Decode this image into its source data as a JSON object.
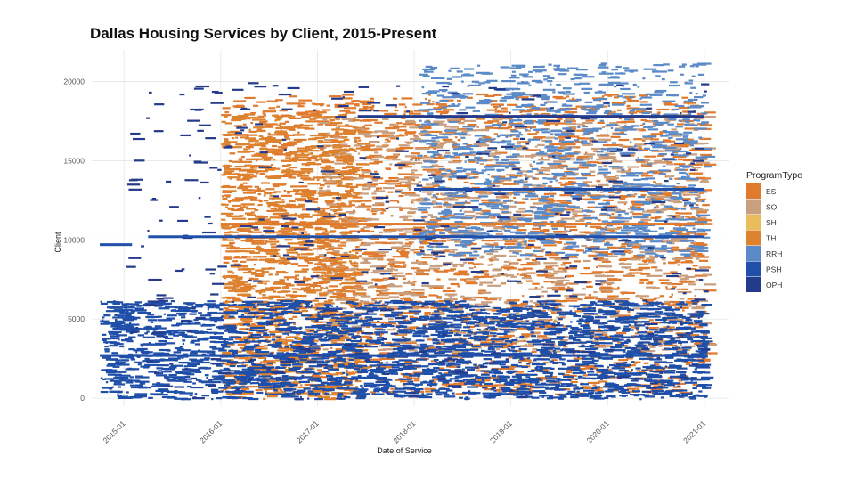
{
  "chart_data": {
    "type": "scatter",
    "title": "Dallas Housing Services by Client, 2015-Present",
    "xlabel": "Date of Service",
    "ylabel": "Client",
    "x_ticks": [
      "2015-01",
      "2016-01",
      "2017-01",
      "2018-01",
      "2019-01",
      "2020-01",
      "2021-01"
    ],
    "y_ticks": [
      0,
      5000,
      10000,
      15000,
      20000
    ],
    "xlim": [
      "2014-09",
      "2021-04"
    ],
    "ylim": [
      -500,
      22000
    ],
    "grid": true,
    "legend": {
      "title": "ProgramType",
      "placement": "right",
      "items": [
        {
          "label": "ES",
          "color": "#E07A2E"
        },
        {
          "label": "SO",
          "color": "#C9A07F"
        },
        {
          "label": "SH",
          "color": "#E9BD5C"
        },
        {
          "label": "TH",
          "color": "#DD822F"
        },
        {
          "label": "RRH",
          "color": "#5A8AC8"
        },
        {
          "label": "PSH",
          "color": "#1F4FA8"
        },
        {
          "label": "OPH",
          "color": "#243A8A"
        }
      ]
    },
    "regions": [
      {
        "program": "ES",
        "x": [
          "2016-01",
          "2021-01"
        ],
        "y": [
          300,
          19300
        ],
        "density": "high"
      },
      {
        "program": "SO",
        "x": [
          "2017-01",
          "2021-01"
        ],
        "y": [
          3000,
          18000
        ],
        "density": "medium"
      },
      {
        "program": "TH",
        "x": [
          "2016-01",
          "2017-06"
        ],
        "y": [
          0,
          18000
        ],
        "density": "medium"
      },
      {
        "program": "RRH",
        "x": [
          "2018-01",
          "2021-01"
        ],
        "y": [
          9000,
          21200
        ],
        "density": "medium"
      },
      {
        "program": "PSH",
        "x": [
          "2014-10",
          "2021-01"
        ],
        "y": [
          0,
          6200
        ],
        "density": "high"
      },
      {
        "program": "OPH",
        "x": [
          "2015-01",
          "2021-01"
        ],
        "y": [
          0,
          20000
        ],
        "density": "low"
      }
    ],
    "notable_lines": [
      {
        "program": "PSH",
        "y": 2700,
        "x": [
          "2014-10",
          "2021-01"
        ]
      },
      {
        "program": "PSH",
        "y": 10200,
        "x": [
          "2015-04",
          "2021-01"
        ]
      },
      {
        "program": "PSH",
        "y": 9700,
        "x": [
          "2014-10",
          "2015-02"
        ]
      },
      {
        "program": "ES",
        "y": 11000,
        "x": [
          "2016-01",
          "2021-01"
        ]
      },
      {
        "program": "PSH",
        "y": 13200,
        "x": [
          "2018-01",
          "2021-01"
        ]
      },
      {
        "program": "OPH",
        "y": 17800,
        "x": [
          "2017-06",
          "2021-01"
        ]
      }
    ]
  }
}
